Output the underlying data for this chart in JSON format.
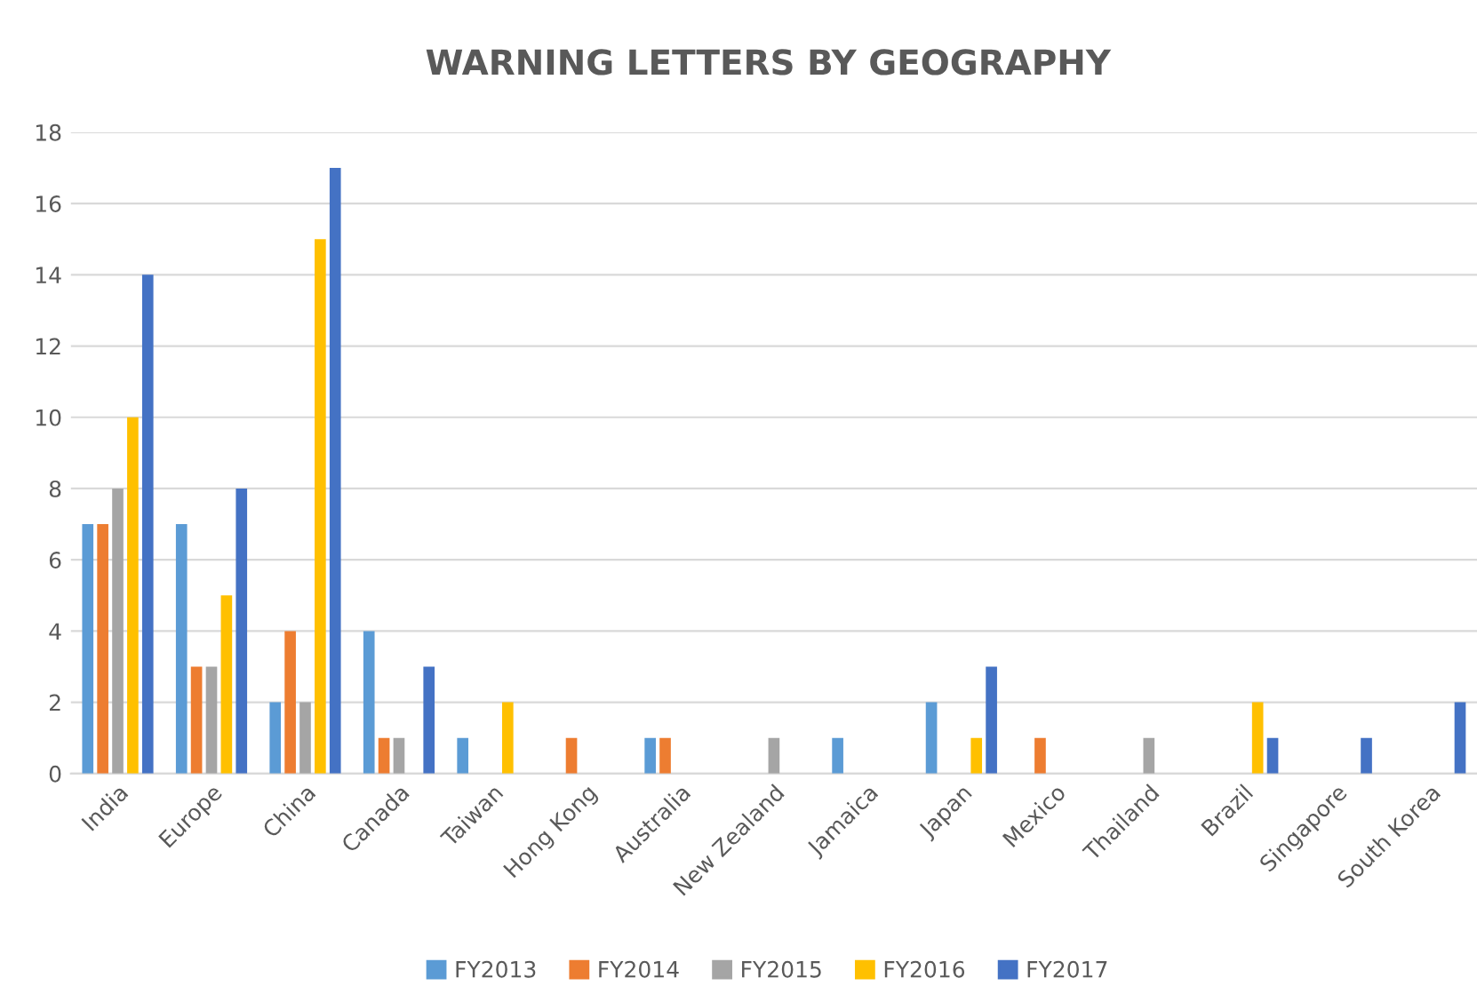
{
  "chart_data": {
    "type": "bar",
    "title": "WARNING LETTERS BY GEOGRAPHY",
    "categories": [
      "India",
      "Europe",
      "China",
      "Canada",
      "Taiwan",
      "Hong Kong",
      "Australia",
      "New Zealand",
      "Jamaica",
      "Japan",
      "Mexico",
      "Thailand",
      "Brazil",
      "Singapore",
      "South Korea"
    ],
    "series": [
      {
        "name": "FY2013",
        "color": "#5b9bd5",
        "values": [
          7,
          7,
          2,
          4,
          1,
          0,
          1,
          0,
          1,
          2,
          0,
          0,
          0,
          0,
          0
        ]
      },
      {
        "name": "FY2014",
        "color": "#ed7d31",
        "values": [
          7,
          3,
          4,
          1,
          0,
          1,
          1,
          0,
          0,
          0,
          1,
          0,
          0,
          0,
          0
        ]
      },
      {
        "name": "FY2015",
        "color": "#a5a5a5",
        "values": [
          8,
          3,
          2,
          1,
          0,
          0,
          0,
          1,
          0,
          0,
          0,
          1,
          0,
          0,
          0
        ]
      },
      {
        "name": "FY2016",
        "color": "#ffc000",
        "values": [
          10,
          5,
          15,
          0,
          2,
          0,
          0,
          0,
          0,
          1,
          0,
          0,
          2,
          0,
          0
        ]
      },
      {
        "name": "FY2017",
        "color": "#4472c4",
        "values": [
          14,
          8,
          17,
          3,
          0,
          0,
          0,
          0,
          0,
          3,
          0,
          0,
          1,
          1,
          2
        ]
      }
    ],
    "ylim": [
      0,
      18
    ],
    "yticks": [
      0,
      2,
      4,
      6,
      8,
      10,
      12,
      14,
      16,
      18
    ],
    "grid": "y",
    "legend": "bottom"
  }
}
